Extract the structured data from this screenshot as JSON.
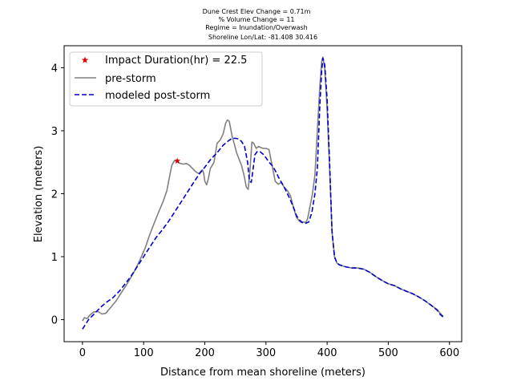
{
  "chart_data": {
    "type": "line",
    "title_lines": [
      "Dune Crest Elev Change = 0.71m",
      "% Volume Change = 11",
      "Regime = Inundation/Overwash",
      "Shoreline Lon/Lat: -81.408 30.416"
    ],
    "xlabel": "Distance from mean shoreline (meters)",
    "ylabel": "Elevation (meters)",
    "xlim": [
      -30,
      620
    ],
    "ylim": [
      -0.35,
      4.35
    ],
    "xticks": [
      0,
      100,
      200,
      300,
      400,
      500,
      600
    ],
    "yticks": [
      0,
      1,
      2,
      3,
      4
    ],
    "grid": false,
    "legend_position": "top-left",
    "colors": {
      "pre": "#808080",
      "post": "#0000cc",
      "marker": "#dd0000"
    },
    "series": [
      {
        "name": "pre-storm",
        "style": "solid",
        "color": "#808080",
        "x": [
          0,
          3,
          8,
          12,
          18,
          25,
          32,
          38,
          45,
          55,
          65,
          75,
          85,
          95,
          103,
          110,
          118,
          125,
          132,
          138,
          142,
          146,
          150,
          153,
          156,
          160,
          165,
          170,
          175,
          180,
          185,
          190,
          193,
          196,
          198,
          200,
          203,
          206,
          209,
          212,
          215,
          220,
          225,
          230,
          234,
          237,
          240,
          243,
          245,
          248,
          252,
          256,
          260,
          264,
          268,
          271,
          274,
          277,
          280,
          284,
          288,
          292,
          296,
          300,
          305,
          310,
          315,
          320,
          325,
          330,
          335,
          340,
          345,
          350,
          355,
          358,
          362,
          365,
          368,
          372,
          376,
          380,
          384,
          388,
          391,
          393,
          396,
          400,
          404,
          408,
          412,
          416,
          420,
          430,
          440,
          450,
          460,
          470,
          480,
          490,
          500,
          510,
          520,
          530,
          540,
          550,
          560,
          570,
          580,
          585,
          590
        ],
        "y": [
          -0.02,
          0.03,
          0.02,
          0.07,
          0.12,
          0.13,
          0.09,
          0.1,
          0.18,
          0.3,
          0.45,
          0.6,
          0.77,
          0.97,
          1.15,
          1.35,
          1.55,
          1.72,
          1.88,
          2.05,
          2.25,
          2.45,
          2.52,
          2.53,
          2.5,
          2.48,
          2.47,
          2.48,
          2.45,
          2.4,
          2.35,
          2.32,
          2.35,
          2.38,
          2.33,
          2.2,
          2.14,
          2.25,
          2.4,
          2.45,
          2.5,
          2.8,
          2.85,
          2.95,
          3.12,
          3.17,
          3.15,
          3.0,
          2.9,
          2.8,
          2.65,
          2.55,
          2.45,
          2.3,
          2.1,
          2.07,
          2.4,
          2.82,
          2.8,
          2.72,
          2.75,
          2.73,
          2.72,
          2.72,
          2.7,
          2.45,
          2.2,
          2.15,
          2.18,
          2.1,
          2.05,
          1.97,
          1.78,
          1.62,
          1.56,
          1.54,
          1.55,
          1.54,
          1.6,
          1.8,
          2.0,
          2.3,
          3.0,
          3.7,
          4.1,
          4.17,
          4.0,
          3.35,
          2.4,
          1.4,
          1.0,
          0.9,
          0.87,
          0.84,
          0.82,
          0.82,
          0.8,
          0.75,
          0.68,
          0.62,
          0.57,
          0.54,
          0.49,
          0.45,
          0.41,
          0.36,
          0.3,
          0.23,
          0.16,
          0.1,
          0.05
        ]
      },
      {
        "name": "modeled post-storm",
        "style": "dashed",
        "color": "#0000cc",
        "x": [
          0,
          10,
          20,
          30,
          40,
          50,
          60,
          70,
          80,
          90,
          100,
          110,
          120,
          130,
          140,
          150,
          160,
          170,
          180,
          190,
          200,
          210,
          220,
          230,
          240,
          245,
          250,
          255,
          260,
          265,
          270,
          273,
          276,
          279,
          282,
          286,
          290,
          295,
          300,
          305,
          310,
          315,
          320,
          330,
          340,
          345,
          350,
          355,
          360,
          365,
          370,
          375,
          380,
          384,
          388,
          391,
          393,
          396,
          400,
          404,
          408,
          412,
          416,
          420,
          430,
          440,
          450,
          460,
          470,
          480,
          490,
          500,
          510,
          520,
          530,
          540,
          550,
          560,
          570,
          580,
          585,
          590
        ],
        "y": [
          -0.15,
          0.0,
          0.1,
          0.2,
          0.28,
          0.35,
          0.45,
          0.57,
          0.7,
          0.85,
          1.0,
          1.15,
          1.3,
          1.42,
          1.55,
          1.7,
          1.85,
          2.0,
          2.15,
          2.3,
          2.42,
          2.55,
          2.65,
          2.77,
          2.85,
          2.88,
          2.88,
          2.87,
          2.83,
          2.75,
          2.5,
          2.2,
          2.18,
          2.4,
          2.62,
          2.67,
          2.67,
          2.63,
          2.57,
          2.5,
          2.45,
          2.37,
          2.27,
          2.1,
          1.9,
          1.78,
          1.65,
          1.58,
          1.54,
          1.53,
          1.55,
          1.7,
          2.0,
          2.4,
          3.4,
          3.95,
          4.15,
          4.05,
          3.5,
          2.5,
          1.4,
          1.0,
          0.9,
          0.87,
          0.84,
          0.82,
          0.82,
          0.8,
          0.75,
          0.68,
          0.62,
          0.57,
          0.54,
          0.49,
          0.45,
          0.41,
          0.36,
          0.3,
          0.23,
          0.15,
          0.08,
          0.04
        ]
      }
    ],
    "marker": {
      "name": "Impact Duration(hr) = 22.5",
      "symbol": "star",
      "x": 155,
      "y": 2.52
    }
  }
}
